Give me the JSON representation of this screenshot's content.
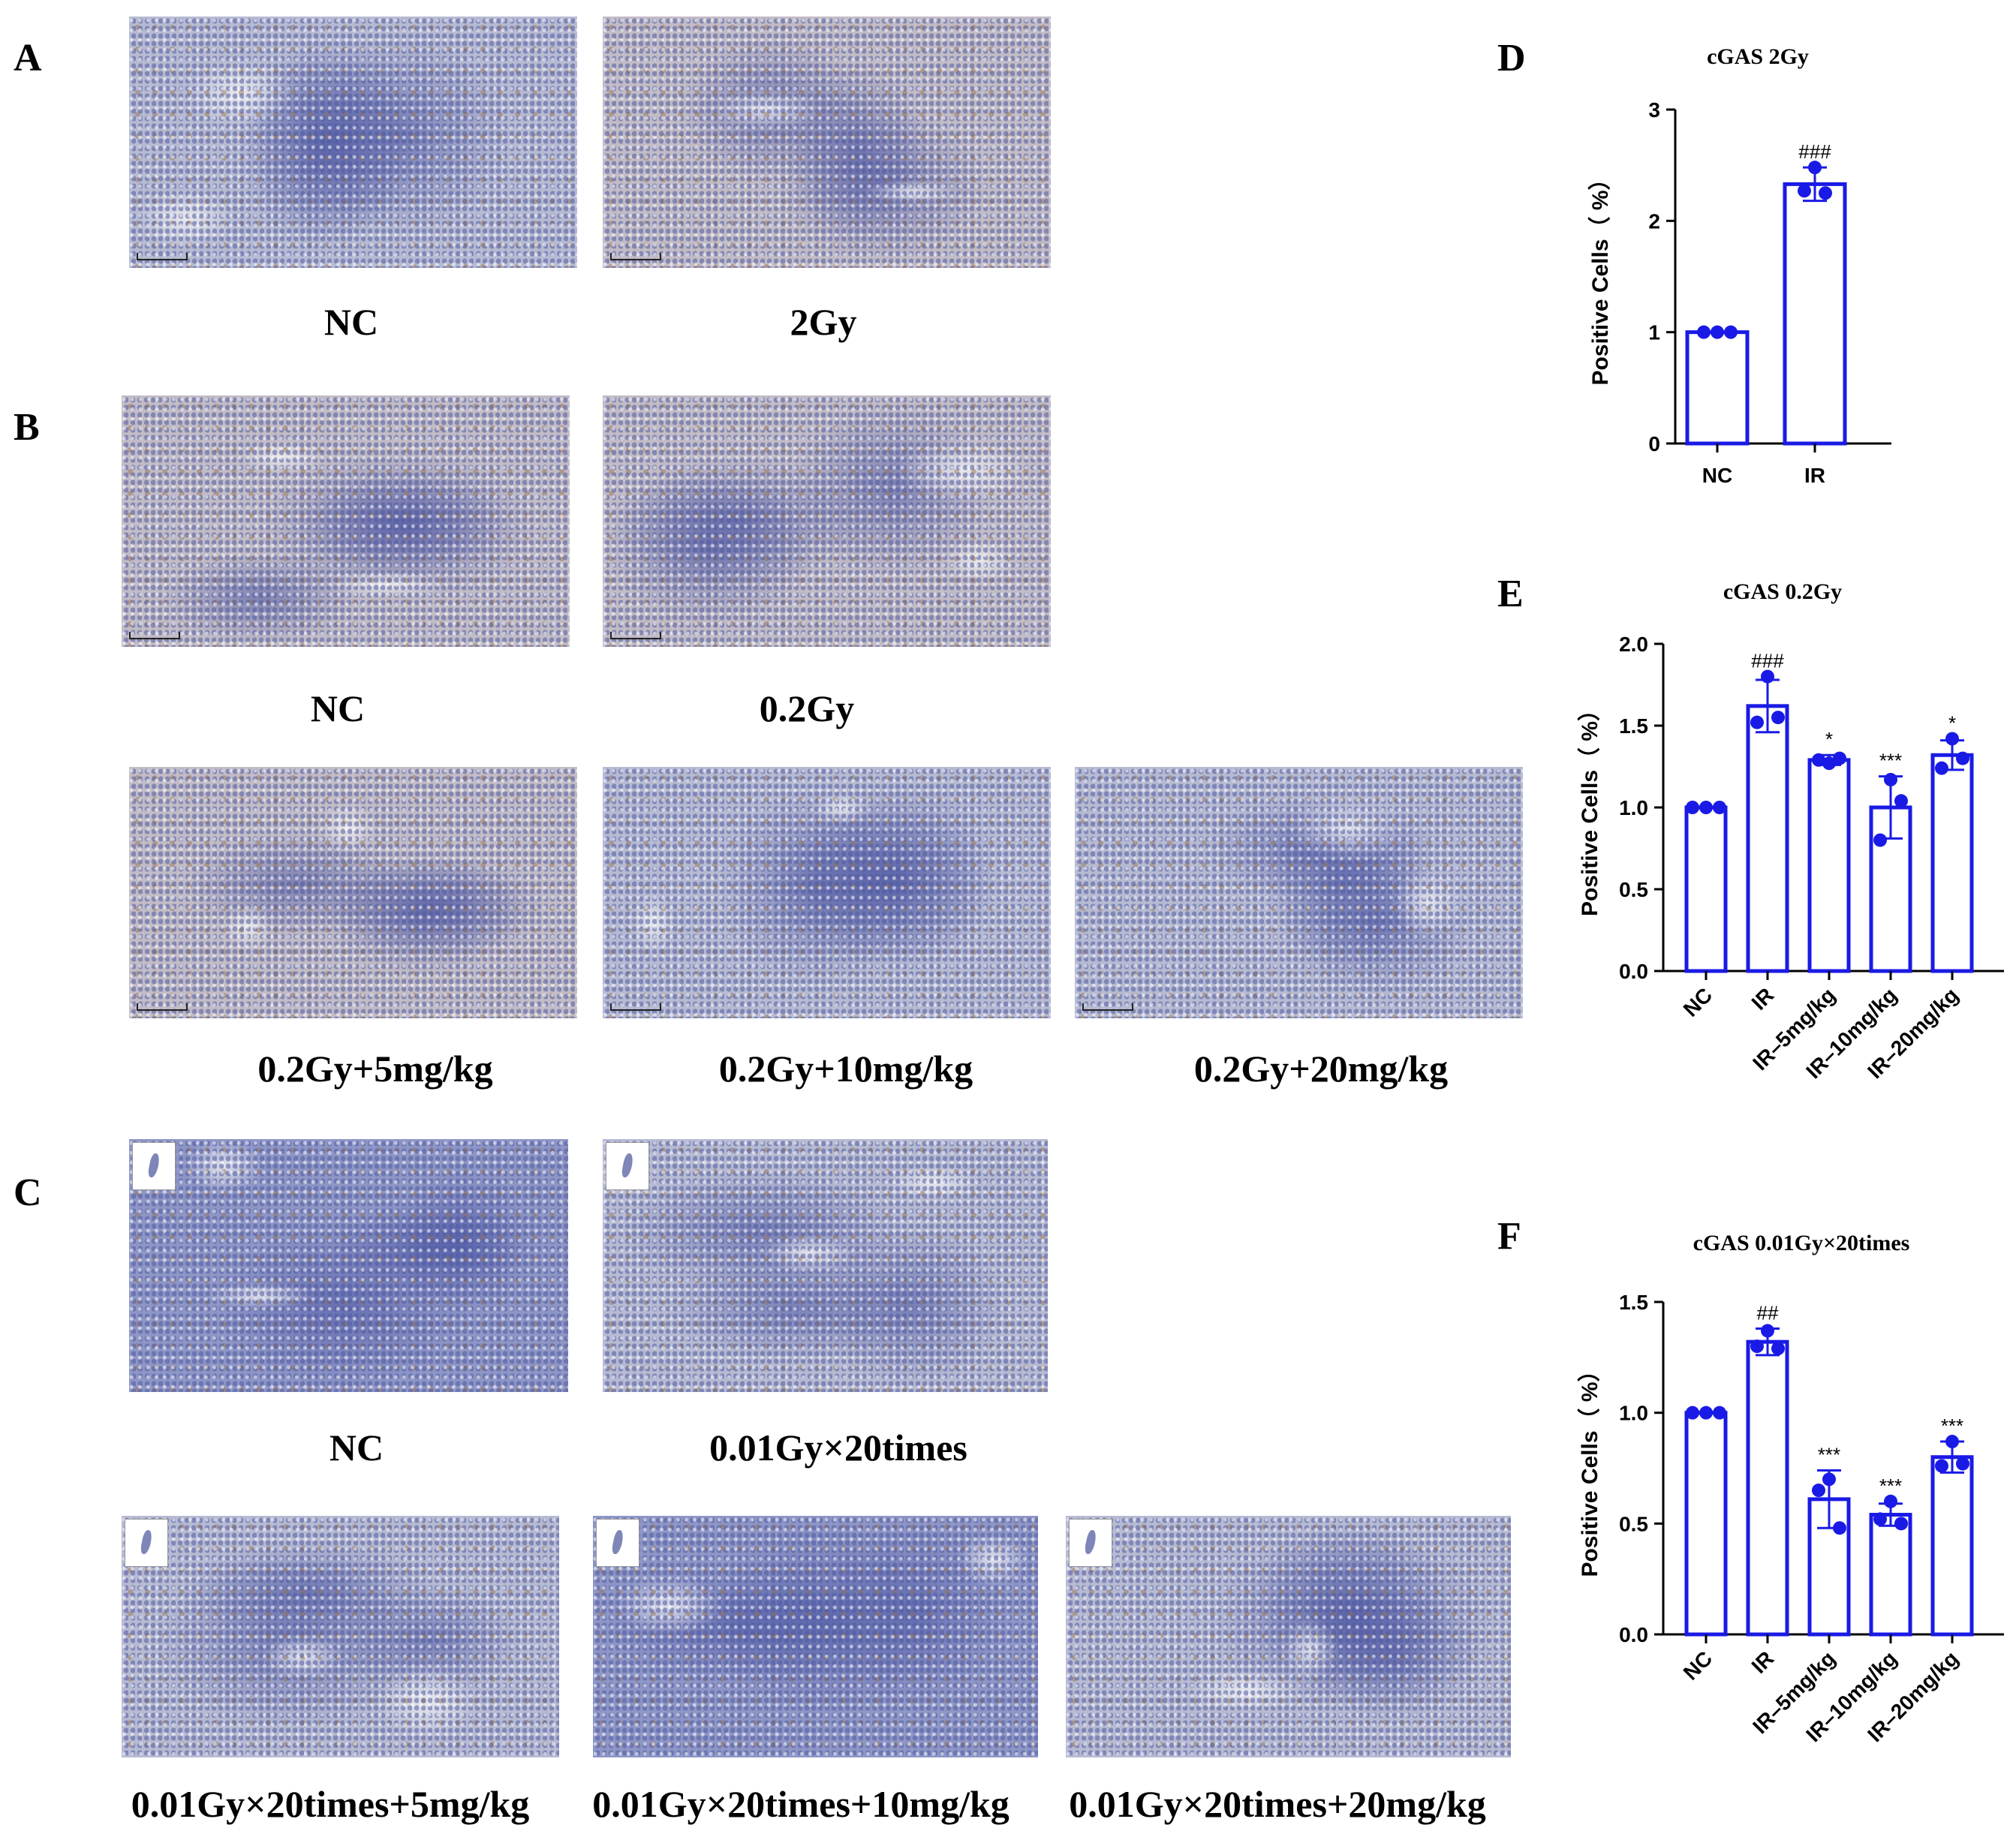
{
  "panel_labels": [
    "A",
    "B",
    "C",
    "D",
    "E",
    "F"
  ],
  "micrographs": [
    {
      "name": "micrograph-a-nc",
      "caption": "NC"
    },
    {
      "name": "micrograph-a-2gy",
      "caption": "2Gy"
    },
    {
      "name": "micrograph-b-nc",
      "caption": "NC"
    },
    {
      "name": "micrograph-b-02gy",
      "caption": "0.2Gy"
    },
    {
      "name": "micrograph-b-02gy-5",
      "caption": "0.2Gy+5mg/kg"
    },
    {
      "name": "micrograph-b-02gy-10",
      "caption": "0.2Gy+10mg/kg"
    },
    {
      "name": "micrograph-b-02gy-20",
      "caption": "0.2Gy+20mg/kg"
    },
    {
      "name": "micrograph-c-nc",
      "caption": "NC"
    },
    {
      "name": "micrograph-c-001gy",
      "caption": "0.01Gy×20times"
    },
    {
      "name": "micrograph-c-001gy-5",
      "caption": "0.01Gy×20times+5mg/kg"
    },
    {
      "name": "micrograph-c-001gy-10",
      "caption": "0.01Gy×20times+10mg/kg"
    },
    {
      "name": "micrograph-c-001gy-20",
      "caption": "0.01Gy×20times+20mg/kg"
    }
  ],
  "colors": {
    "bar": "#1a1ae6",
    "axis": "#000000"
  },
  "chart_data": [
    {
      "type": "bar",
      "title": "cGAS 2Gy",
      "ylabel": "Positive Cells（ %）",
      "xlabel": "",
      "categories": [
        "NC",
        "IR"
      ],
      "values": [
        1.0,
        2.33
      ],
      "errors": [
        0.0,
        0.15
      ],
      "points": [
        [
          1.0,
          1.0,
          1.0
        ],
        [
          2.48,
          2.25,
          2.27
        ]
      ],
      "annotations": [
        "",
        "###"
      ],
      "ylim": [
        0,
        3
      ],
      "yticks": [
        0,
        1,
        2,
        3
      ],
      "tick_labels": [
        "0",
        "1",
        "2",
        "3"
      ],
      "rotated_xlabels": false
    },
    {
      "type": "bar",
      "title": "cGAS 0.2Gy",
      "ylabel": "Positive Cells（ %）",
      "xlabel": "",
      "categories": [
        "NC",
        "IR",
        "IR–5mg/kg",
        "IR–10mg/kg",
        "IR–20mg/kg"
      ],
      "values": [
        1.0,
        1.62,
        1.29,
        1.0,
        1.32
      ],
      "errors": [
        0.0,
        0.16,
        0.03,
        0.19,
        0.09
      ],
      "points": [
        [
          1.0,
          1.0,
          1.0
        ],
        [
          1.8,
          1.55,
          1.52
        ],
        [
          1.27,
          1.3,
          1.29
        ],
        [
          1.17,
          1.04,
          0.8
        ],
        [
          1.42,
          1.3,
          1.24
        ]
      ],
      "annotations": [
        "",
        "###",
        "*",
        "***",
        "*"
      ],
      "ylim": [
        0,
        2
      ],
      "yticks": [
        0,
        0.5,
        1,
        1.5,
        2
      ],
      "tick_labels": [
        "0.0",
        "0.5",
        "1.0",
        "1.5",
        "2.0"
      ],
      "rotated_xlabels": true
    },
    {
      "type": "bar",
      "title": "cGAS 0.01Gy×20times",
      "ylabel": "Positive Cells（ %）",
      "xlabel": "",
      "categories": [
        "NC",
        "IR",
        "IR–5mg/kg",
        "IR–10mg/kg",
        "IR–20mg/kg"
      ],
      "values": [
        1.0,
        1.32,
        0.61,
        0.54,
        0.8
      ],
      "errors": [
        0.0,
        0.06,
        0.13,
        0.05,
        0.07
      ],
      "points": [
        [
          1.0,
          1.0,
          1.0
        ],
        [
          1.37,
          1.29,
          1.3
        ],
        [
          0.7,
          0.48,
          0.65
        ],
        [
          0.6,
          0.5,
          0.52
        ],
        [
          0.87,
          0.77,
          0.76
        ]
      ],
      "annotations": [
        "",
        "##",
        "***",
        "***",
        "***"
      ],
      "ylim": [
        0,
        1.5
      ],
      "yticks": [
        0,
        0.5,
        1,
        1.5
      ],
      "tick_labels": [
        "0.0",
        "0.5",
        "1.0",
        "1.5"
      ],
      "rotated_xlabels": true
    }
  ]
}
